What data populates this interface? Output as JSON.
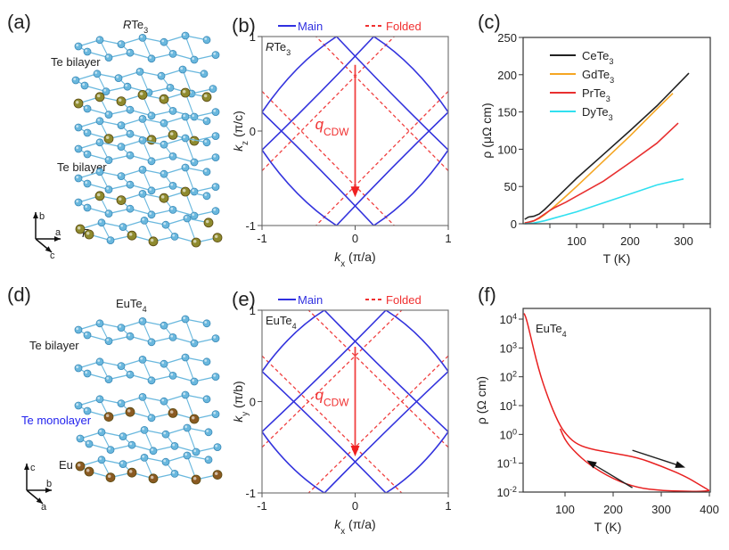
{
  "panels": {
    "a": {
      "label": "(a)",
      "title_main": "R",
      "title_rest": "Te",
      "title_sub": "3",
      "te_bilayer_1": "Te bilayer",
      "te_bilayer_2": "Te bilayer",
      "rare_earth_label": "R",
      "axes": {
        "up": "b",
        "right": "a",
        "diag": "c"
      },
      "colors": {
        "te": "#6ab8de",
        "r": "#8e8a2e"
      }
    },
    "d": {
      "label": "(d)",
      "title_main": "EuTe",
      "title_sub": "4",
      "te_bilayer": "Te bilayer",
      "te_monolayer": "Te monolayer",
      "eu_label": "Eu",
      "axes": {
        "up": "c",
        "right": "b",
        "diag": "a"
      },
      "colors": {
        "te": "#6ab8de",
        "eu": "#8a5a22",
        "monolayer_text": "#2222ee"
      }
    }
  },
  "chart_data": [
    {
      "id": "b",
      "label": "(b)",
      "type": "line",
      "inset_title": "RTe3",
      "inset_title_parts": {
        "italic": "R",
        "rest": "Te",
        "sub": "3"
      },
      "legend": [
        {
          "name": "Main",
          "color": "#3030e0",
          "style": "solid"
        },
        {
          "name": "Folded",
          "color": "#f03030",
          "style": "dashed"
        }
      ],
      "legend_placement": "top",
      "xlabel": {
        "sym": "k",
        "sub": "x",
        "unit": " (π/a)"
      },
      "ylabel": {
        "sym": "k",
        "sub": "z",
        "unit": " (π/c)"
      },
      "xlim": [
        -1,
        1
      ],
      "ylim": [
        -1,
        1
      ],
      "xticks": [
        "-1",
        "0",
        "1"
      ],
      "yticks": [
        "-1",
        "0",
        "1"
      ],
      "annotation": {
        "text": "q",
        "sub": "CDW",
        "arrow_from": [
          0,
          0.7
        ],
        "arrow_to": [
          0,
          -0.7
        ]
      },
      "main_pockets": {
        "tip_x": 0.2,
        "edge_y": 0.2,
        "cross": 0.7
      },
      "folded_lines": [
        [
          [
            -1,
            0.42
          ],
          [
            0.42,
            -1
          ]
        ],
        [
          [
            -1,
            -0.42
          ],
          [
            0.42,
            1
          ]
        ],
        [
          [
            1,
            0.42
          ],
          [
            -0.42,
            -1
          ]
        ],
        [
          [
            1,
            -0.42
          ],
          [
            -0.42,
            1
          ]
        ]
      ]
    },
    {
      "id": "c",
      "label": "(c)",
      "type": "line",
      "xlabel": "T (K)",
      "ylabel": "ρ (μΩ cm)",
      "xlim": [
        0,
        350
      ],
      "ylim": [
        0,
        250
      ],
      "xticks": [
        "100",
        "200",
        "300"
      ],
      "yticks": [
        "0",
        "50",
        "100",
        "150",
        "200",
        "250"
      ],
      "legend_placement": "top-left",
      "series": [
        {
          "name": "CeTe",
          "sub": "3",
          "color": "#222222",
          "x": [
            3,
            10,
            20,
            30,
            40,
            50,
            60,
            80,
            100,
            150,
            200,
            250,
            280,
            310
          ],
          "y": [
            6,
            9,
            10,
            13,
            19,
            26,
            33,
            47,
            61,
            93,
            125,
            158,
            180,
            202
          ]
        },
        {
          "name": "GdTe",
          "sub": "3",
          "color": "#f5a623",
          "x": [
            3,
            10,
            20,
            30,
            40,
            50,
            60,
            80,
            100,
            150,
            200,
            250,
            280
          ],
          "y": [
            1,
            2,
            4,
            7,
            12,
            18,
            24,
            37,
            50,
            84,
            118,
            154,
            175
          ]
        },
        {
          "name": "PrTe",
          "sub": "3",
          "color": "#e83030",
          "x": [
            3,
            10,
            20,
            30,
            40,
            50,
            60,
            80,
            100,
            150,
            200,
            250,
            290
          ],
          "y": [
            1,
            2,
            4,
            8,
            13,
            18,
            22,
            29,
            37,
            57,
            82,
            108,
            135
          ]
        },
        {
          "name": "DyTe",
          "sub": "3",
          "color": "#30e0f0",
          "x": [
            3,
            20,
            40,
            60,
            80,
            100,
            150,
            200,
            250,
            280,
            300
          ],
          "y": [
            0,
            1,
            4,
            8,
            12,
            16,
            28,
            40,
            52,
            57,
            60
          ]
        }
      ]
    },
    {
      "id": "e",
      "label": "(e)",
      "type": "line",
      "inset_title_parts": {
        "italic": "",
        "rest": "EuTe",
        "sub": "4"
      },
      "legend": [
        {
          "name": "Main",
          "color": "#3030e0",
          "style": "solid"
        },
        {
          "name": "Folded",
          "color": "#f03030",
          "style": "dashed"
        }
      ],
      "legend_placement": "top",
      "xlabel": {
        "sym": "k",
        "sub": "x",
        "unit": " (π/a)"
      },
      "ylabel": {
        "sym": "k",
        "sub": "y",
        "unit": " (π/b)"
      },
      "xlim": [
        -1,
        1
      ],
      "ylim": [
        -1,
        1
      ],
      "xticks": [
        "-1",
        "0",
        "1"
      ],
      "yticks": [
        "-1",
        "0",
        "1"
      ],
      "annotation": {
        "text": "q",
        "sub": "CDW",
        "arrow_from": [
          0,
          0.6
        ],
        "arrow_to": [
          0,
          -0.6
        ]
      },
      "main_pockets": {
        "tip_x": 0.33,
        "edge_y": 0.33,
        "cross": 0.6
      },
      "folded_lines": [
        [
          [
            -1,
            0.5
          ],
          [
            0.5,
            -1
          ]
        ],
        [
          [
            -1,
            -0.5
          ],
          [
            0.5,
            1
          ]
        ],
        [
          [
            1,
            0.5
          ],
          [
            -0.5,
            -1
          ]
        ],
        [
          [
            1,
            -0.5
          ],
          [
            -0.5,
            1
          ]
        ]
      ]
    },
    {
      "id": "f",
      "label": "(f)",
      "type": "line",
      "inset_title": "EuTe4",
      "inset_title_parts": {
        "rest": "EuTe",
        "sub": "4"
      },
      "xlabel": "T (K)",
      "ylabel": "ρ (Ω cm)",
      "yscale": "log",
      "xlim": [
        13,
        400
      ],
      "ylim_log10": [
        -2,
        4.2
      ],
      "xticks": [
        "100",
        "200",
        "300",
        "400"
      ],
      "yticks": [
        {
          "base": "10",
          "exp": "4"
        },
        {
          "base": "10",
          "exp": "3"
        },
        {
          "base": "10",
          "exp": "2"
        },
        {
          "base": "10",
          "exp": "1"
        },
        {
          "base": "10",
          "exp": "0"
        },
        {
          "base": "10",
          "exp": "-1"
        },
        {
          "base": "10",
          "exp": "-2"
        }
      ],
      "series": [
        {
          "name": "warming",
          "color": "#e82020",
          "x": [
            15,
            20,
            30,
            40,
            50,
            60,
            70,
            80,
            90,
            100,
            120,
            150,
            200,
            250,
            300,
            350,
            380,
            400
          ],
          "log10y": [
            4.2,
            4.0,
            3.3,
            2.6,
            2.0,
            1.5,
            1.05,
            0.65,
            0.3,
            0.05,
            -0.3,
            -0.5,
            -0.65,
            -0.8,
            -1.1,
            -1.45,
            -1.75,
            -1.95
          ]
        },
        {
          "name": "cooling",
          "color": "#e82020",
          "x": [
            400,
            380,
            350,
            300,
            250,
            200,
            150,
            120,
            100,
            90
          ],
          "log10y": [
            -1.95,
            -1.98,
            -1.97,
            -1.95,
            -1.85,
            -1.55,
            -1.05,
            -0.6,
            -0.2,
            0.2
          ]
        }
      ],
      "arrows": [
        {
          "direction": "warming",
          "from": [
            240,
            -0.55
          ],
          "to": [
            350,
            -1.15
          ]
        },
        {
          "direction": "cooling",
          "from": [
            240,
            -1.85
          ],
          "to": [
            145,
            -0.9
          ]
        }
      ]
    }
  ]
}
